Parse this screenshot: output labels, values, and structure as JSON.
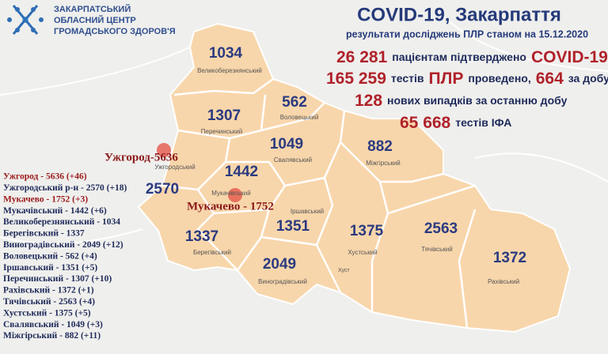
{
  "header": {
    "org": [
      "ЗАКАРПАТСЬКИЙ",
      "ОБЛАСНИЙ ЦЕНТР",
      "ГРОМАДСЬКОГО ЗДОРОВ'Я"
    ],
    "title": "COVID-19, Закарпаття",
    "subtitle": "результати досліджень ПЛР станом на 15.12.2020"
  },
  "stats": [
    [
      "26 281",
      "пацієнтам підтверджено",
      "COVID-19"
    ],
    [
      "165 259",
      "тестів",
      "ПЛР",
      "проведено,",
      "664",
      "за добу"
    ],
    [
      "128",
      "нових випадків за останню добу"
    ],
    [
      "65 668",
      "тестів ІФА"
    ]
  ],
  "regions": [
    {
      "name": "Великоберезнянський",
      "value": 1034
    },
    {
      "name": "Перечинський",
      "value": 1307
    },
    {
      "name": "Воловецький",
      "value": 562
    },
    {
      "name": "Свалявський",
      "value": 1049
    },
    {
      "name": "Міжгірський",
      "value": 882
    },
    {
      "name": "Ужгородський",
      "value": 2570
    },
    {
      "name": "Мукачівський",
      "value": 1442
    },
    {
      "name": "Іршавський",
      "value": 1351
    },
    {
      "name": "Хустський",
      "value": 1375
    },
    {
      "name": "Тячівський",
      "value": 2563
    },
    {
      "name": "Рахівський",
      "value": 1372
    },
    {
      "name": "Берегівський",
      "value": 1337
    },
    {
      "name": "Виноградівський",
      "value": 2049
    }
  ],
  "cities": [
    "Ужгород-5636",
    "Мукачево - 1752",
    "Хуст"
  ],
  "list": [
    {
      "text": "Ужгород - 5636 (+46)",
      "color": "#9b1b1b"
    },
    {
      "text": "Ужгородський р-н - 2570 (+18)",
      "color": "#1e2a5a"
    },
    {
      "text": "Мукачево - 1752 (+3)",
      "color": "#9b1b1b"
    },
    {
      "text": "Мукачівський - 1442 (+6)",
      "color": "#1e2a5a"
    },
    {
      "text": "Великоберезнянський - 1034",
      "color": "#1e2a5a"
    },
    {
      "text": "Берегівський - 1337",
      "color": "#1e2a5a"
    },
    {
      "text": "Виноградівський - 2049 (+12)",
      "color": "#1e2a5a"
    },
    {
      "text": "Воловецький - 562 (+4)",
      "color": "#1e2a5a"
    },
    {
      "text": "Іршавський - 1351 (+5)",
      "color": "#1e2a5a"
    },
    {
      "text": "Перечинський - 1307 (+10)",
      "color": "#1e2a5a"
    },
    {
      "text": "Рахівський - 1372 (+1)",
      "color": "#1e2a5a"
    },
    {
      "text": "Тячівський - 2563 (+4)",
      "color": "#1e2a5a"
    },
    {
      "text": "Хустський - 1375 (+5)",
      "color": "#1e2a5a"
    },
    {
      "text": "Свалявський - 1049 (+3)",
      "color": "#1e2a5a"
    },
    {
      "text": "Міжгірський - 882 (+11)",
      "color": "#1e2a5a"
    }
  ]
}
